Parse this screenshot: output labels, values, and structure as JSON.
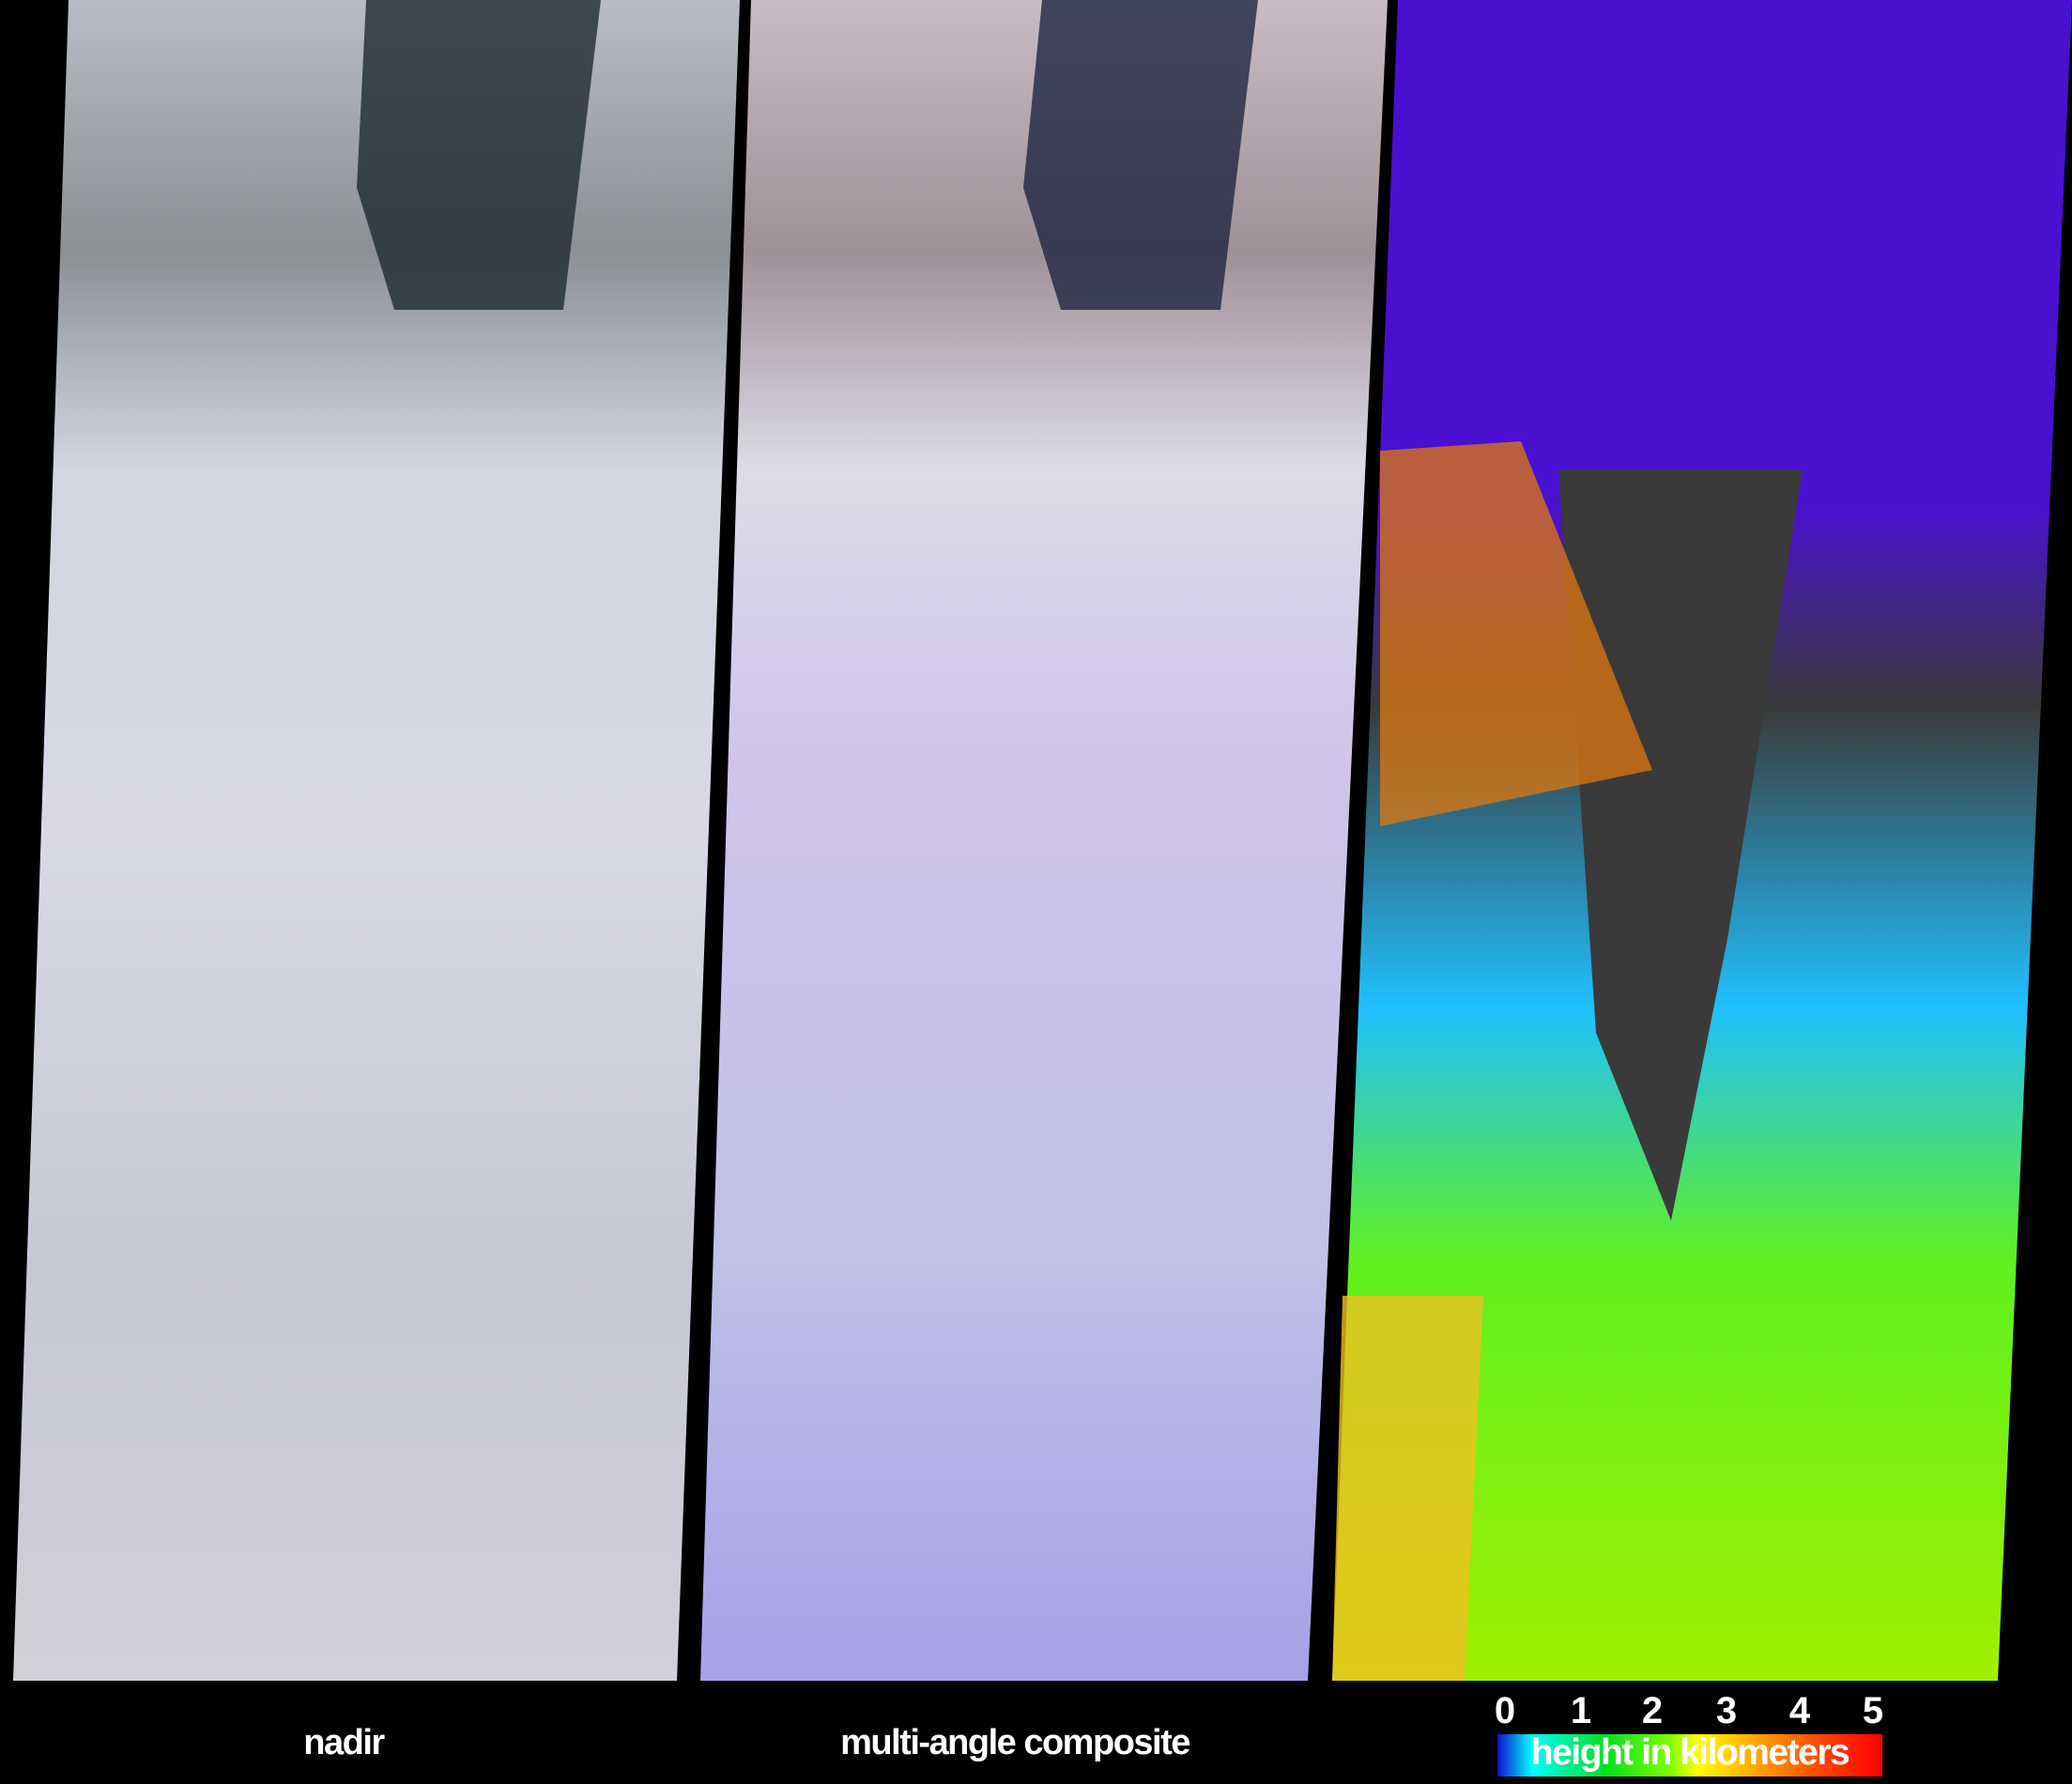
{
  "panels": [
    {
      "caption": "nadir"
    },
    {
      "caption": "multi-angle composite"
    },
    {
      "caption": ""
    }
  ],
  "legend": {
    "ticks": [
      "0",
      "1",
      "2",
      "3",
      "4",
      "5"
    ],
    "label": "height in kilometers",
    "range": [
      0,
      5
    ],
    "colors": [
      "#1010d0",
      "#00ffff",
      "#00e020",
      "#80ff00",
      "#ffff00",
      "#ffa000",
      "#ff0000"
    ],
    "no_data_color": "#3a3a3a"
  }
}
